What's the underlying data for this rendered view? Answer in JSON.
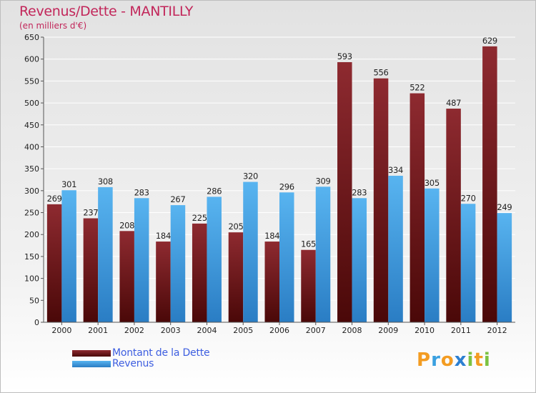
{
  "title": "Revenus/Dette - MANTILLY",
  "subtitle": "(en milliers d'€)",
  "chart_data": {
    "type": "bar",
    "categories": [
      "2000",
      "2001",
      "2002",
      "2003",
      "2004",
      "2005",
      "2006",
      "2007",
      "2008",
      "2009",
      "2010",
      "2011",
      "2012"
    ],
    "series": [
      {
        "name": "Montant de la Dette",
        "values": [
          269,
          237,
          208,
          184,
          225,
          205,
          184,
          165,
          593,
          556,
          522,
          487,
          629
        ],
        "color": "#7a1e22"
      },
      {
        "name": "Revenus",
        "values": [
          301,
          308,
          283,
          267,
          286,
          320,
          296,
          309,
          283,
          334,
          305,
          270,
          249
        ],
        "color": "#4aa8e8"
      }
    ],
    "ylim": [
      0,
      650
    ],
    "yticks": [
      "0",
      "50",
      "100",
      "150",
      "200",
      "250",
      "300",
      "350",
      "400",
      "450",
      "500",
      "550",
      "600",
      "650"
    ],
    "grid": true,
    "legend": "bottom-left"
  },
  "logo": {
    "text": "Proxiti",
    "letters": [
      {
        "ch": "P",
        "color": "#f39c22"
      },
      {
        "ch": "r",
        "color": "#3aa0e0"
      },
      {
        "ch": "o",
        "color": "#f39c22"
      },
      {
        "ch": "x",
        "color": "#2c7fd1"
      },
      {
        "ch": "i",
        "color": "#7cc242"
      },
      {
        "ch": "t",
        "color": "#f39c22"
      },
      {
        "ch": "i",
        "color": "#7cc242"
      }
    ]
  }
}
